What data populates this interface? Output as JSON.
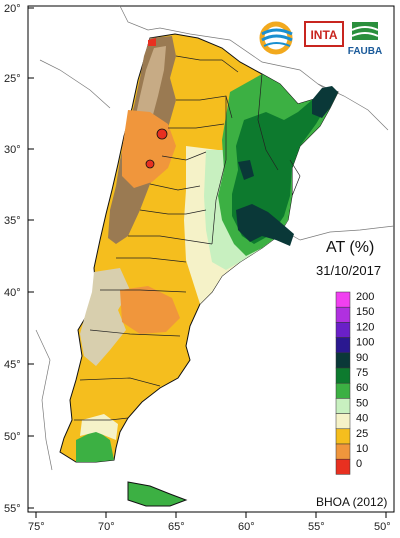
{
  "map": {
    "title": "AT (%)",
    "date": "31/10/2017",
    "source": "BHOA (2012)",
    "lat_labels": [
      "20°",
      "25°",
      "30°",
      "35°",
      "40°",
      "45°",
      "50°",
      "55°"
    ],
    "lon_labels": [
      "75°",
      "70°",
      "65°",
      "60°",
      "55°",
      "50°"
    ]
  },
  "logos": {
    "inta": "INTA",
    "fauba": "FAUBA"
  },
  "legend": {
    "classes": [
      {
        "label": "200",
        "color": "#f040f0"
      },
      {
        "label": "150",
        "color": "#b030e0"
      },
      {
        "label": "120",
        "color": "#6a20c8"
      },
      {
        "label": "100",
        "color": "#2a1890"
      },
      {
        "label": "90",
        "color": "#0a3838"
      },
      {
        "label": "75",
        "color": "#0d7a2e"
      },
      {
        "label": "60",
        "color": "#3cb043"
      },
      {
        "label": "50",
        "color": "#c8f0c0"
      },
      {
        "label": "40",
        "color": "#f5f2c8"
      },
      {
        "label": "25",
        "color": "#f5be1e"
      },
      {
        "label": "10",
        "color": "#f0963c"
      },
      {
        "label": "0",
        "color": "#e83020"
      }
    ]
  },
  "colors": {
    "dry": "#f5be1e",
    "very_dry": "#f0963c",
    "critical": "#e83020",
    "mid": "#f5f2c8",
    "light_green": "#c8f0c0",
    "green": "#3cb043",
    "dark_green": "#0d7a2e",
    "wettest": "#0a3838",
    "mountains": "#9a7a52",
    "patagonia_terrain": "#d8cfae"
  }
}
